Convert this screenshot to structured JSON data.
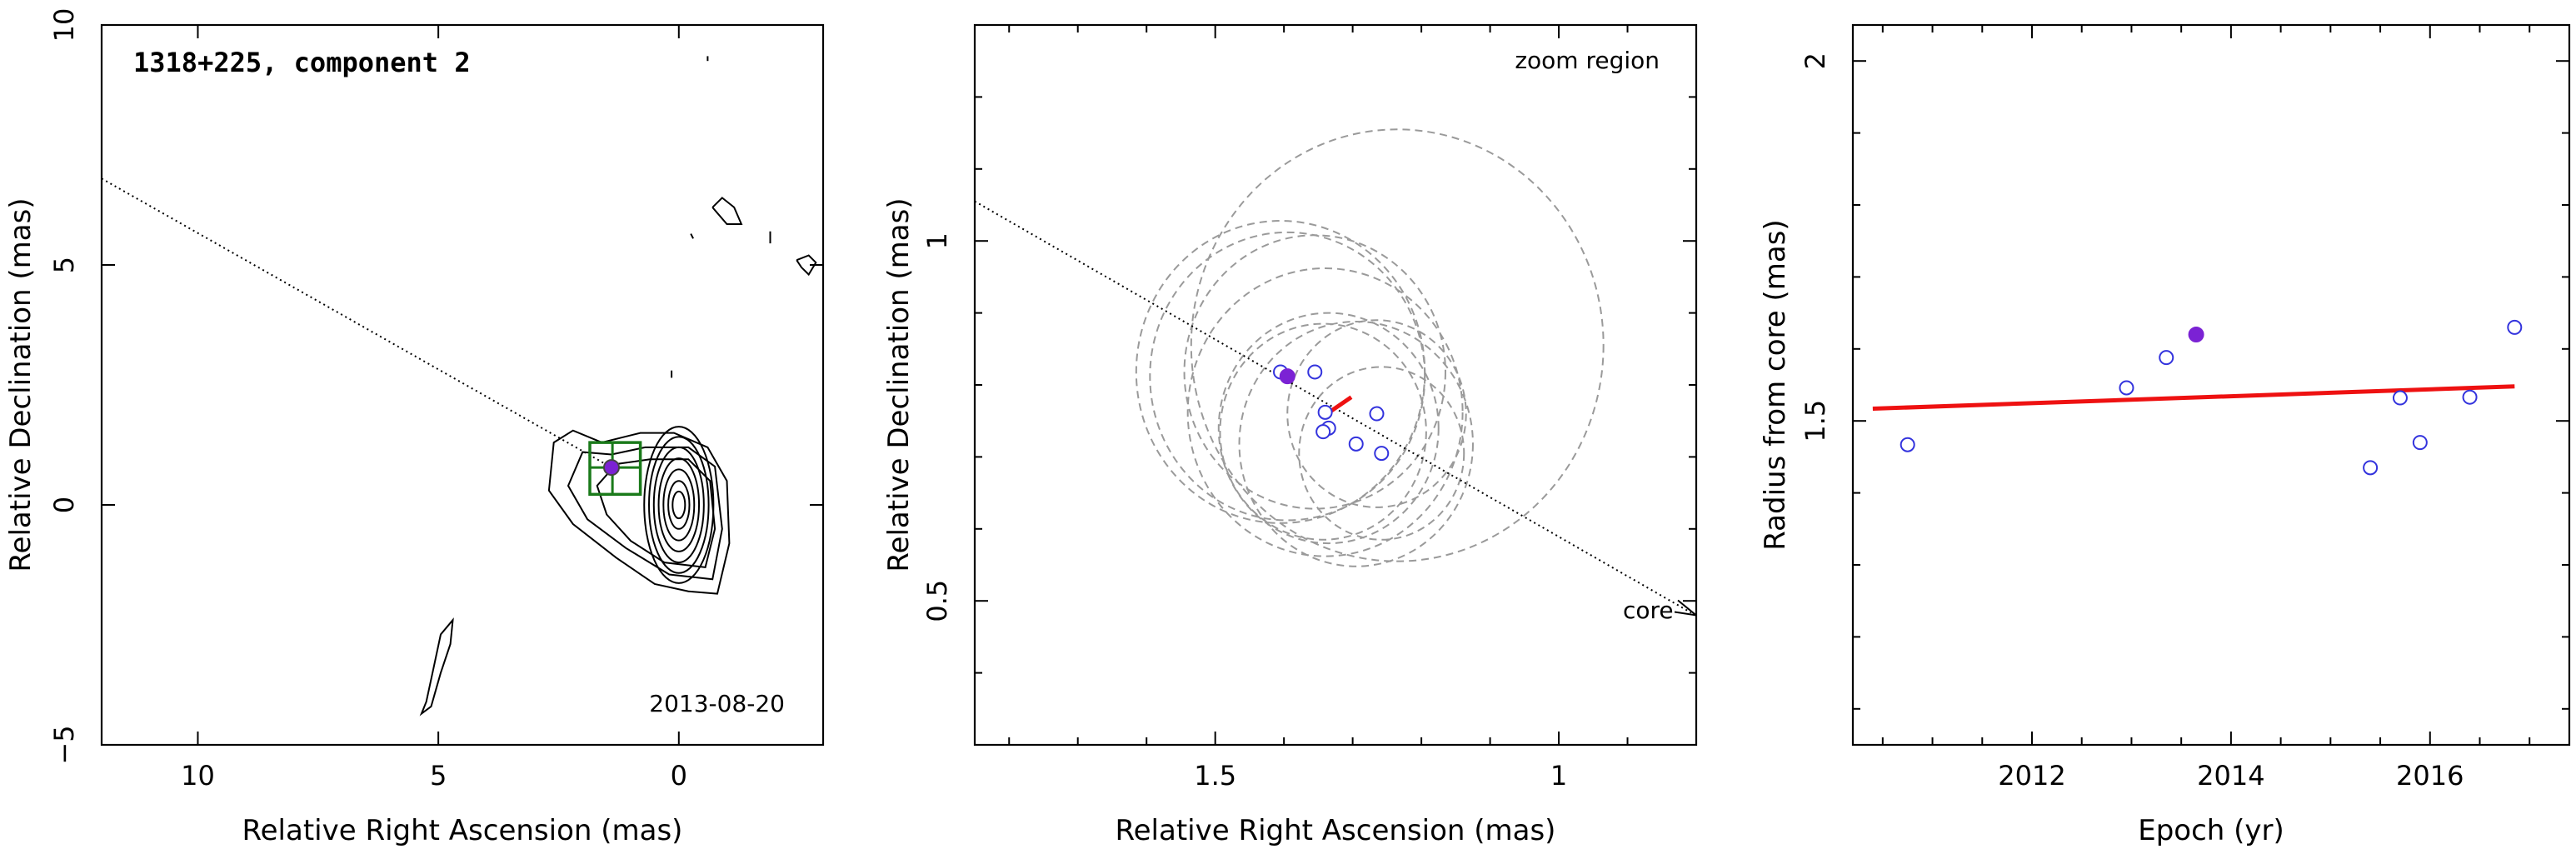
{
  "chart_data": [
    {
      "type": "contour",
      "panel": "map",
      "title": "1318+225, component 2",
      "epoch_label": "2013-08-20",
      "xlabel": "Relative Right Ascension (mas)",
      "ylabel": "Relative Declination (mas)",
      "xlim": [
        12,
        -3
      ],
      "ylim": [
        -5,
        10
      ],
      "x_ticks": [
        10,
        5,
        0
      ],
      "y_ticks": [
        -5,
        0,
        5,
        10
      ],
      "x_tick_labels": [
        "10",
        "5",
        "0"
      ],
      "y_tick_labels": [
        "−5",
        "0",
        "5",
        "10"
      ],
      "core_contours": [
        {
          "rx": 0.13,
          "ry": 0.28
        },
        {
          "rx": 0.22,
          "ry": 0.5
        },
        {
          "rx": 0.32,
          "ry": 0.74
        },
        {
          "rx": 0.42,
          "ry": 0.97
        },
        {
          "rx": 0.52,
          "ry": 1.2
        },
        {
          "rx": 0.62,
          "ry": 1.42
        },
        {
          "rx": 0.72,
          "ry": 1.63
        }
      ],
      "outer_contours": [
        [
          [
            -0.8,
            -1.85
          ],
          [
            -0.2,
            -1.8
          ],
          [
            0.5,
            -1.65
          ],
          [
            1.3,
            -1.1
          ],
          [
            2.2,
            -0.4
          ],
          [
            2.7,
            0.3
          ],
          [
            2.6,
            1.3
          ],
          [
            2.2,
            1.55
          ],
          [
            1.6,
            1.3
          ],
          [
            0.8,
            1.5
          ],
          [
            0.1,
            1.5
          ],
          [
            -0.6,
            1.2
          ],
          [
            -1.0,
            0.5
          ],
          [
            -1.05,
            -0.8
          ],
          [
            -0.8,
            -1.85
          ]
        ],
        [
          [
            -0.7,
            -1.55
          ],
          [
            0.2,
            -1.45
          ],
          [
            1.1,
            -0.9
          ],
          [
            1.9,
            -0.3
          ],
          [
            2.3,
            0.4
          ],
          [
            2.0,
            1.1
          ],
          [
            1.4,
            1.05
          ],
          [
            0.7,
            1.2
          ],
          [
            -0.2,
            1.2
          ],
          [
            -0.75,
            0.8
          ],
          [
            -0.9,
            -0.5
          ],
          [
            -0.7,
            -1.55
          ]
        ],
        [
          [
            -0.55,
            -1.3
          ],
          [
            0.3,
            -1.2
          ],
          [
            1.0,
            -0.75
          ],
          [
            1.5,
            -0.2
          ],
          [
            1.7,
            0.4
          ],
          [
            1.3,
            0.85
          ],
          [
            0.6,
            0.95
          ],
          [
            -0.2,
            0.95
          ],
          [
            -0.65,
            0.5
          ],
          [
            -0.75,
            -0.5
          ],
          [
            -0.55,
            -1.3
          ]
        ]
      ],
      "speck_contours": [
        [
          [
            -0.7,
            6.2
          ],
          [
            -0.9,
            6.4
          ],
          [
            -1.15,
            6.2
          ],
          [
            -1.3,
            5.85
          ],
          [
            -1.0,
            5.85
          ],
          [
            -0.7,
            6.2
          ]
        ],
        [
          [
            -2.45,
            5.1
          ],
          [
            -2.7,
            5.2
          ],
          [
            -2.85,
            5.05
          ],
          [
            -2.7,
            4.8
          ],
          [
            -2.55,
            4.95
          ],
          [
            -2.45,
            5.1
          ]
        ],
        [
          [
            -1.9,
            5.7
          ],
          [
            -1.9,
            5.45
          ]
        ],
        [
          [
            -0.6,
            9.35
          ],
          [
            -0.6,
            9.25
          ]
        ],
        [
          [
            0.15,
            2.8
          ],
          [
            0.15,
            2.65
          ]
        ],
        [
          [
            -0.25,
            5.65
          ],
          [
            -0.3,
            5.55
          ]
        ]
      ],
      "tail_contour": [
        [
          4.7,
          -2.4
        ],
        [
          4.95,
          -2.7
        ],
        [
          5.1,
          -3.4
        ],
        [
          5.25,
          -4.1
        ],
        [
          5.35,
          -4.35
        ],
        [
          5.15,
          -4.2
        ],
        [
          4.95,
          -3.5
        ],
        [
          4.75,
          -2.9
        ],
        [
          4.7,
          -2.4
        ]
      ],
      "jet_axis": {
        "from": [
          12,
          6.8
        ],
        "to": [
          1.4,
          0.78
        ]
      },
      "box": {
        "x0": 0.8,
        "x1": 1.85,
        "y0": 0.22,
        "y1": 1.3,
        "xmid": 1.38,
        "ymid": 0.78
      },
      "component_point": {
        "x": 1.4,
        "y": 0.78
      },
      "colors": {
        "contour": "#000000",
        "box": "#1a7a1a",
        "point": "#7b22d4"
      }
    },
    {
      "type": "scatter",
      "panel": "zoom",
      "title": "zoom region",
      "annotation": "core",
      "xlabel": "Relative Right Ascension (mas)",
      "ylabel": "Relative Declination (mas)",
      "xlim": [
        1.85,
        0.8
      ],
      "ylim": [
        0.3,
        1.3
      ],
      "x_ticks": [
        1.5,
        1.0
      ],
      "x_tick_labels": [
        "1.5",
        "1"
      ],
      "y_ticks": [
        0.5,
        1.0
      ],
      "y_tick_labels": [
        "0.5",
        "1"
      ],
      "x_minor_ticks": [
        1.8,
        1.7,
        1.6,
        1.4,
        1.3,
        1.2,
        1.1,
        0.9
      ],
      "y_minor_ticks": [
        0.3,
        0.4,
        0.6,
        0.7,
        0.8,
        0.9,
        1.1,
        1.2
      ],
      "open_points": [
        {
          "x": 1.405,
          "y": 0.818
        },
        {
          "x": 1.355,
          "y": 0.818
        },
        {
          "x": 1.34,
          "y": 0.762
        },
        {
          "x": 1.335,
          "y": 0.74
        },
        {
          "x": 1.343,
          "y": 0.735
        },
        {
          "x": 1.295,
          "y": 0.718
        },
        {
          "x": 1.265,
          "y": 0.76
        },
        {
          "x": 1.258,
          "y": 0.705
        }
      ],
      "filled_point": {
        "x": 1.395,
        "y": 0.812
      },
      "fit_line": [
        [
          1.345,
          0.755
        ],
        [
          1.302,
          0.783
        ]
      ],
      "error_circles": [
        {
          "cx": 1.405,
          "cy": 0.818,
          "r": 0.21
        },
        {
          "cx": 1.355,
          "cy": 0.818,
          "r": 0.19
        },
        {
          "cx": 1.34,
          "cy": 0.762,
          "r": 0.2
        },
        {
          "cx": 1.335,
          "cy": 0.74,
          "r": 0.16
        },
        {
          "cx": 1.343,
          "cy": 0.735,
          "r": 0.15
        },
        {
          "cx": 1.295,
          "cy": 0.718,
          "r": 0.17
        },
        {
          "cx": 1.265,
          "cy": 0.76,
          "r": 0.13
        },
        {
          "cx": 1.258,
          "cy": 0.705,
          "r": 0.12
        },
        {
          "cx": 1.235,
          "cy": 0.855,
          "r": 0.3
        },
        {
          "cx": 1.395,
          "cy": 0.812,
          "r": 0.2
        }
      ],
      "jet_axis": {
        "from": [
          1.85,
          1.055
        ],
        "to": [
          0.8,
          0.48
        ]
      },
      "colors": {
        "open_point": "#3333dd",
        "filled_point": "#7b22d4",
        "fit": "#ee1111",
        "circle": "#9a9a9a"
      }
    },
    {
      "type": "scatter",
      "panel": "radius",
      "xlabel": "Epoch (yr)",
      "ylabel": "Radius from core (mas)",
      "xlim": [
        2010.2,
        2017.4
      ],
      "ylim": [
        1.05,
        2.05
      ],
      "x_ticks": [
        2012,
        2014,
        2016
      ],
      "x_tick_labels": [
        "2012",
        "2014",
        "2016"
      ],
      "y_ticks": [
        1.5,
        2.0
      ],
      "y_tick_labels": [
        "1.5",
        "2"
      ],
      "x_minor_ticks": [
        2010.5,
        2011,
        2011.5,
        2012.5,
        2013,
        2013.5,
        2014.5,
        2015,
        2015.5,
        2016.5,
        2017
      ],
      "y_minor_ticks": [
        1.1,
        1.2,
        1.3,
        1.4,
        1.6,
        1.7,
        1.8,
        1.9
      ],
      "open_points": [
        {
          "x": 2010.75,
          "y": 1.467
        },
        {
          "x": 2012.95,
          "y": 1.546
        },
        {
          "x": 2013.35,
          "y": 1.588
        },
        {
          "x": 2015.4,
          "y": 1.435
        },
        {
          "x": 2015.7,
          "y": 1.532
        },
        {
          "x": 2015.9,
          "y": 1.47
        },
        {
          "x": 2016.4,
          "y": 1.533
        },
        {
          "x": 2016.85,
          "y": 1.63
        }
      ],
      "filled_point": {
        "x": 2013.65,
        "y": 1.62
      },
      "fit_line": [
        [
          2010.4,
          1.517
        ],
        [
          2016.85,
          1.548
        ]
      ],
      "colors": {
        "open_point": "#3333dd",
        "filled_point": "#7b22d4",
        "fit": "#ee1111"
      }
    }
  ]
}
